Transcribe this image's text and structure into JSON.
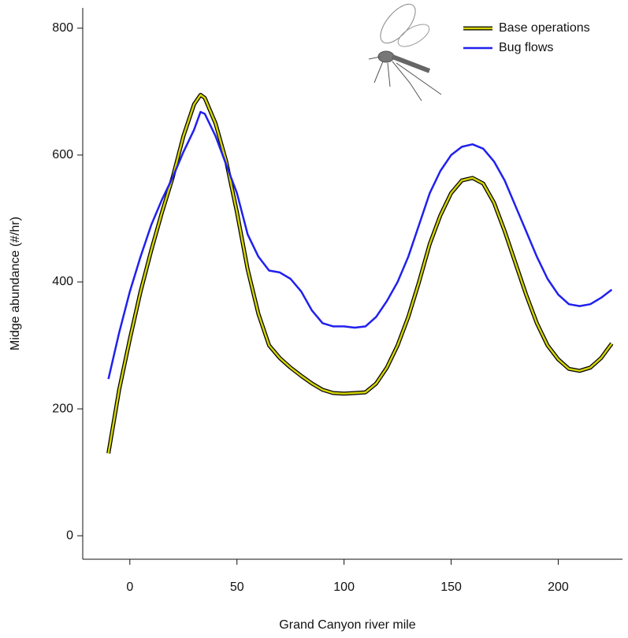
{
  "chart_data": {
    "type": "line",
    "xlabel": "Grand Canyon river mile",
    "ylabel": "Midge abundance (#/hr)",
    "x": [
      -10,
      -5,
      0,
      5,
      10,
      15,
      20,
      25,
      30,
      33,
      35,
      40,
      45,
      50,
      55,
      60,
      65,
      70,
      75,
      80,
      85,
      90,
      95,
      100,
      105,
      110,
      115,
      120,
      125,
      130,
      135,
      140,
      145,
      150,
      155,
      160,
      165,
      170,
      175,
      180,
      185,
      190,
      195,
      200,
      205,
      210,
      215,
      220,
      225
    ],
    "series": [
      {
        "name": "Base operations",
        "color": "#d4d400",
        "edgecolor": "#000000",
        "values": [
          130,
          230,
          310,
          385,
          450,
          510,
          565,
          630,
          680,
          695,
          690,
          650,
          590,
          510,
          420,
          350,
          300,
          280,
          265,
          252,
          240,
          230,
          225,
          224,
          225,
          226,
          240,
          265,
          300,
          345,
          400,
          460,
          505,
          540,
          560,
          564,
          555,
          525,
          480,
          430,
          380,
          335,
          300,
          278,
          263,
          260,
          265,
          280,
          303
        ]
      },
      {
        "name": "Bug flows",
        "color": "#2020ee",
        "values": [
          247,
          320,
          385,
          440,
          490,
          530,
          565,
          605,
          640,
          668,
          665,
          630,
          585,
          540,
          475,
          440,
          418,
          415,
          405,
          385,
          355,
          335,
          330,
          330,
          328,
          330,
          345,
          370,
          400,
          440,
          490,
          540,
          575,
          600,
          613,
          617,
          610,
          590,
          560,
          520,
          480,
          440,
          405,
          380,
          365,
          362,
          365,
          375,
          388
        ]
      }
    ],
    "xlim": [
      -22,
      230
    ],
    "xticks": [
      0,
      50,
      100,
      150,
      200
    ],
    "ylim": [
      -37,
      832
    ],
    "yticks": [
      0,
      200,
      400,
      600,
      800
    ],
    "legend": "top-right"
  }
}
